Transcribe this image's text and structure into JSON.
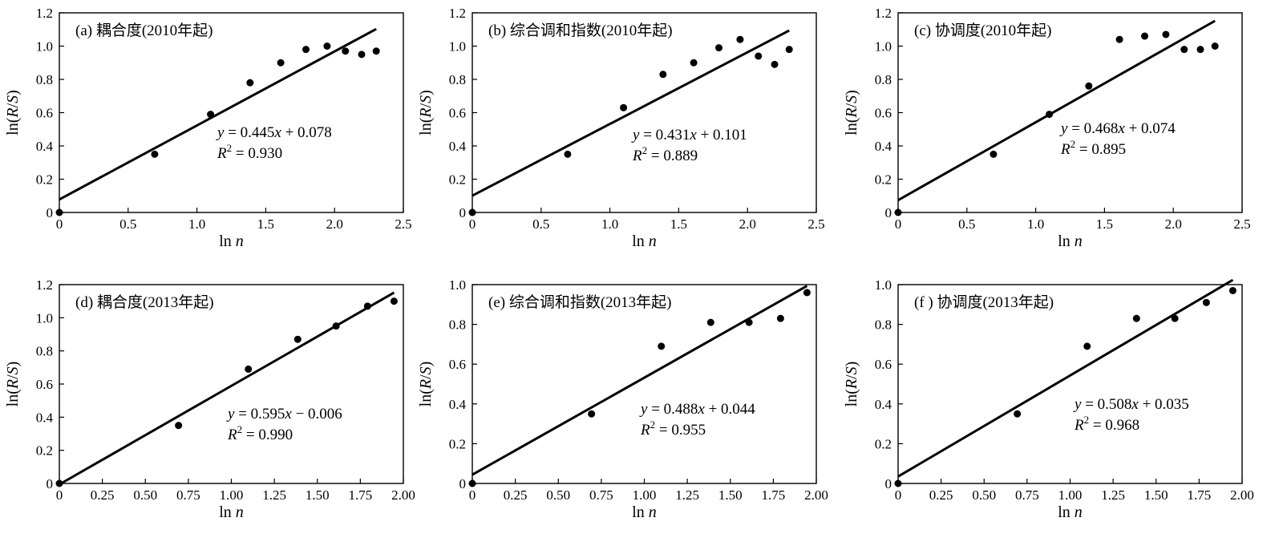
{
  "chart_data": [
    {
      "type": "scatter",
      "title": "(a) 耦合度(2010年起)",
      "xlabel": "ln n",
      "ylabel": "ln(R/S)",
      "xlim": [
        0,
        2.5
      ],
      "ylim": [
        0,
        1.2
      ],
      "xticks": [
        "0",
        "0.5",
        "1.0",
        "1.5",
        "2.0",
        "2.5"
      ],
      "yticks": [
        "0",
        "0.2",
        "0.4",
        "0.6",
        "0.8",
        "1.0",
        "1.2"
      ],
      "x": [
        0,
        0.693,
        1.099,
        1.386,
        1.609,
        1.792,
        1.946,
        2.079,
        2.197,
        2.303
      ],
      "y": [
        0,
        0.35,
        0.59,
        0.78,
        0.9,
        0.98,
        1.0,
        0.97,
        0.95,
        0.97
      ],
      "fit": {
        "slope": 0.445,
        "intercept": 0.078,
        "x_range": [
          0,
          2.303
        ]
      },
      "equation": "y = 0.445x + 0.078",
      "r2": "R² = 0.930"
    },
    {
      "type": "scatter",
      "title": "(b) 综合调和指数(2010年起)",
      "xlabel": "ln n",
      "ylabel": "ln(R/S)",
      "xlim": [
        0,
        2.5
      ],
      "ylim": [
        0,
        1.2
      ],
      "xticks": [
        "0",
        "0.5",
        "1.0",
        "1.5",
        "2.0",
        "2.5"
      ],
      "yticks": [
        "0",
        "0.2",
        "0.4",
        "0.6",
        "0.8",
        "1.0",
        "1.2"
      ],
      "x": [
        0,
        0.693,
        1.099,
        1.386,
        1.609,
        1.792,
        1.946,
        2.079,
        2.197,
        2.303
      ],
      "y": [
        0,
        0.35,
        0.63,
        0.83,
        0.9,
        0.99,
        1.04,
        0.94,
        0.89,
        0.98
      ],
      "fit": {
        "slope": 0.431,
        "intercept": 0.101,
        "x_range": [
          0,
          2.303
        ]
      },
      "equation": "y = 0.431x + 0.101",
      "r2": "R² = 0.889"
    },
    {
      "type": "scatter",
      "title": "(c) 协调度(2010年起)",
      "xlabel": "ln n",
      "ylabel": "ln(R/S)",
      "xlim": [
        0,
        2.5
      ],
      "ylim": [
        0,
        1.2
      ],
      "xticks": [
        "0",
        "0.5",
        "1.0",
        "1.5",
        "2.0",
        "2.5"
      ],
      "yticks": [
        "0",
        "0.2",
        "0.4",
        "0.6",
        "0.8",
        "1.0",
        "1.2"
      ],
      "x": [
        0,
        0.693,
        1.099,
        1.386,
        1.609,
        1.792,
        1.946,
        2.079,
        2.197,
        2.303
      ],
      "y": [
        0,
        0.35,
        0.59,
        0.76,
        1.04,
        1.06,
        1.07,
        0.98,
        0.98,
        1.0
      ],
      "fit": {
        "slope": 0.468,
        "intercept": 0.074,
        "x_range": [
          0,
          2.303
        ]
      },
      "equation": "y = 0.468x + 0.074",
      "r2": "R² = 0.895"
    },
    {
      "type": "scatter",
      "title": "(d) 耦合度(2013年起)",
      "xlabel": "ln n",
      "ylabel": "ln(R/S)",
      "xlim": [
        0,
        2.0
      ],
      "ylim": [
        0,
        1.2
      ],
      "xticks": [
        "0",
        "0.25",
        "0.50",
        "0.75",
        "1.00",
        "1.25",
        "1.50",
        "1.75",
        "2.00"
      ],
      "yticks": [
        "0",
        "0.2",
        "0.4",
        "0.6",
        "0.8",
        "1.0",
        "1.2"
      ],
      "x": [
        0,
        0.693,
        1.099,
        1.386,
        1.609,
        1.792,
        1.946
      ],
      "y": [
        0,
        0.35,
        0.69,
        0.87,
        0.95,
        1.07,
        1.1
      ],
      "fit": {
        "slope": 0.595,
        "intercept": -0.006,
        "x_range": [
          0,
          1.946
        ]
      },
      "equation": "y = 0.595x − 0.006",
      "r2": "R² = 0.990"
    },
    {
      "type": "scatter",
      "title": "(e) 综合调和指数(2013年起)",
      "xlabel": "ln n",
      "ylabel": "ln(R/S)",
      "xlim": [
        0,
        2.0
      ],
      "ylim": [
        0,
        1.0
      ],
      "xticks": [
        "0",
        "0.25",
        "0.50",
        "0.75",
        "1.00",
        "1.25",
        "1.50",
        "1.75",
        "2.00"
      ],
      "yticks": [
        "0",
        "0.2",
        "0.4",
        "0.6",
        "0.8",
        "1.0"
      ],
      "x": [
        0,
        0.693,
        1.099,
        1.386,
        1.609,
        1.792,
        1.946
      ],
      "y": [
        0,
        0.35,
        0.69,
        0.81,
        0.81,
        0.83,
        0.96
      ],
      "fit": {
        "slope": 0.488,
        "intercept": 0.044,
        "x_range": [
          0,
          1.946
        ]
      },
      "equation": "y = 0.488x + 0.044",
      "r2": "R² = 0.955"
    },
    {
      "type": "scatter",
      "title": "(f ) 协调度(2013年起)",
      "xlabel": "ln n",
      "ylabel": "ln(R/S)",
      "xlim": [
        0,
        2.0
      ],
      "ylim": [
        0,
        1.0
      ],
      "xticks": [
        "0",
        "0.25",
        "0.50",
        "0.75",
        "1.00",
        "1.25",
        "1.50",
        "1.75",
        "2.00"
      ],
      "yticks": [
        "0",
        "0.2",
        "0.4",
        "0.6",
        "0.8",
        "1.0"
      ],
      "x": [
        0,
        0.693,
        1.099,
        1.386,
        1.609,
        1.792,
        1.946
      ],
      "y": [
        0,
        0.35,
        0.69,
        0.83,
        0.83,
        0.91,
        0.97
      ],
      "fit": {
        "slope": 0.508,
        "intercept": 0.035,
        "x_range": [
          0,
          1.946
        ]
      },
      "equation": "y = 0.508x + 0.035",
      "r2": "R² = 0.968"
    }
  ]
}
